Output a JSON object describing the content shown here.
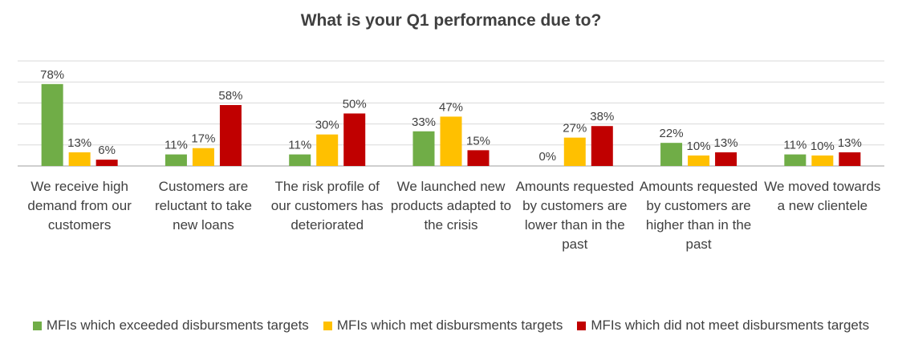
{
  "chart_data": {
    "type": "bar",
    "title": "What is your Q1 performance due to?",
    "categories": [
      "We receive high demand from our customers",
      "Customers are reluctant to take new loans",
      "The risk profile of our customers has deteriorated",
      "We launched new products adapted to the crisis",
      "Amounts requested by customers are lower than in the past",
      "Amounts requested by customers are higher than in the past",
      "We moved towards a new clientele"
    ],
    "series": [
      {
        "name": "MFIs which exceeded disbursments targets",
        "color": "#70AD47",
        "values": [
          78,
          11,
          11,
          33,
          0,
          22,
          11
        ]
      },
      {
        "name": "MFIs which met disbursments targets",
        "color": "#FFC000",
        "values": [
          13,
          17,
          30,
          47,
          27,
          10,
          10
        ]
      },
      {
        "name": "MFIs which did not meet disbursments targets",
        "color": "#C00000",
        "values": [
          6,
          58,
          50,
          15,
          38,
          13,
          13
        ]
      }
    ],
    "value_suffix": "%",
    "ylim": [
      0,
      100
    ],
    "grid": true,
    "legend_position": "bottom"
  }
}
